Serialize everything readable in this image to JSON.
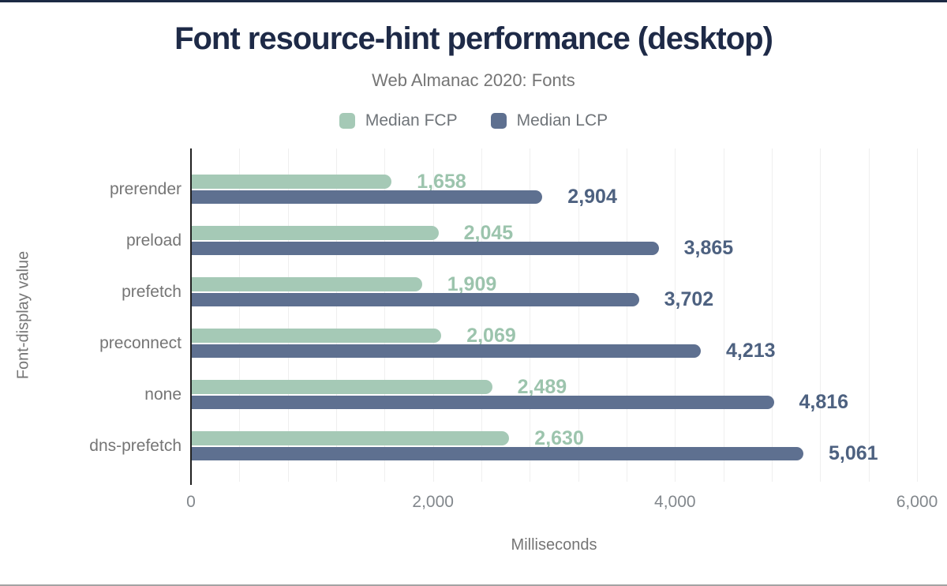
{
  "chart_data": {
    "type": "bar",
    "orientation": "horizontal",
    "title": "Font resource-hint performance (desktop)",
    "subtitle": "Web Almanac 2020: Fonts",
    "xlabel": "Milliseconds",
    "ylabel": "Font-display value",
    "xlim": [
      0,
      6000
    ],
    "gridline_step": 400,
    "grid": "vertical-only",
    "legend_position": "top-center",
    "categories": [
      "prerender",
      "preload",
      "prefetch",
      "preconnect",
      "none",
      "dns-prefetch"
    ],
    "series": [
      {
        "name": "Median FCP",
        "color": "#a5c9b6",
        "label_color": "#9cc4ad",
        "values": [
          1658,
          2045,
          1909,
          2069,
          2489,
          2630
        ],
        "labels": [
          "1,658",
          "2,045",
          "1,909",
          "2,069",
          "2,489",
          "2,630"
        ]
      },
      {
        "name": "Median LCP",
        "color": "#5e7090",
        "label_color": "#4d6180",
        "values": [
          2904,
          3865,
          3702,
          4213,
          4816,
          5061
        ],
        "labels": [
          "2,904",
          "3,865",
          "3,702",
          "4,213",
          "4,816",
          "5,061"
        ]
      }
    ],
    "x_ticks": [
      {
        "value": 0,
        "label": "0"
      },
      {
        "value": 2000,
        "label": "2,000"
      },
      {
        "value": 4000,
        "label": "4,000"
      },
      {
        "value": 6000,
        "label": "6,000"
      }
    ]
  },
  "colors": {
    "title": "#1e2a47",
    "subtitle_text": "#757575",
    "axis_line": "#212121",
    "gridline": "#efefef",
    "fcp_accent": "#a5c9b6",
    "lcp_accent": "#5e7090"
  }
}
